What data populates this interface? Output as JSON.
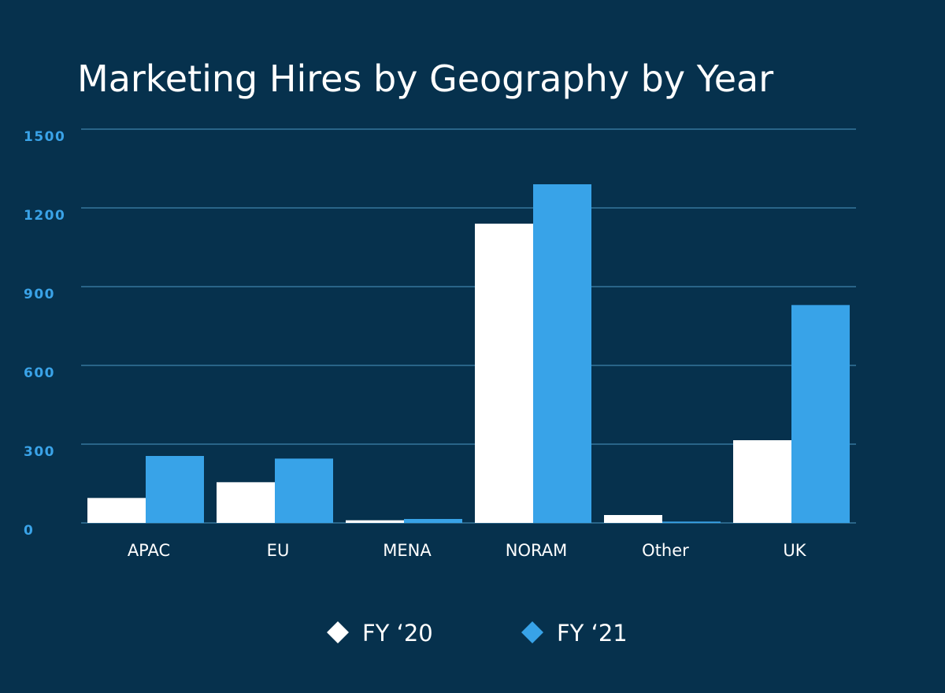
{
  "chart_data": {
    "type": "bar",
    "title": "Marketing Hires by Geography by Year",
    "xlabel": "",
    "ylabel": "",
    "categories": [
      "APAC",
      "EU",
      "MENA",
      "NORAM",
      "Other",
      "UK"
    ],
    "series": [
      {
        "name": "FY ‘20",
        "color": "#ffffff",
        "values": [
          95,
          155,
          10,
          1140,
          30,
          315
        ]
      },
      {
        "name": "FY ‘21",
        "color": "#38a3e8",
        "values": [
          255,
          245,
          15,
          1290,
          5,
          830
        ]
      }
    ],
    "ylim": [
      0,
      1500
    ],
    "yticks": [
      0,
      300,
      600,
      900,
      1200,
      1500
    ],
    "ytick_labels": [
      "0",
      "300",
      "600",
      "900",
      "1200",
      "1500"
    ],
    "grid": true,
    "legend_position": "bottom",
    "legend_marker": "diamond",
    "colors": {
      "background": "#06314d",
      "gridline": "#3f84ab",
      "tick_label": "#3aa3e8"
    }
  }
}
